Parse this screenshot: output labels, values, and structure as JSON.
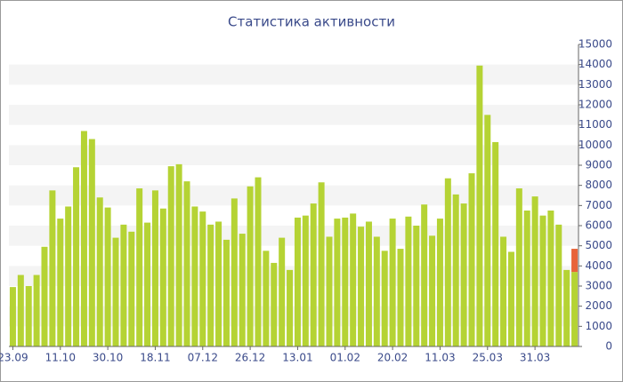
{
  "chart_data": {
    "type": "bar",
    "title": "Статистика активности",
    "categories": [
      "23.09",
      null,
      null,
      null,
      null,
      null,
      "11.10",
      null,
      null,
      null,
      null,
      null,
      "30.10",
      null,
      null,
      null,
      null,
      null,
      "18.11",
      null,
      null,
      null,
      null,
      null,
      "07.12",
      null,
      null,
      null,
      null,
      null,
      "26.12",
      null,
      null,
      null,
      null,
      null,
      "13.01",
      null,
      null,
      null,
      null,
      null,
      "01.02",
      null,
      null,
      null,
      null,
      null,
      "20.02",
      null,
      null,
      null,
      null,
      null,
      "11.03",
      null,
      null,
      null,
      null,
      null,
      "25.03",
      null,
      null,
      null,
      null,
      null,
      "31.03",
      null,
      null,
      null,
      null,
      null
    ],
    "series": [
      {
        "color": "#b5d334",
        "values": [
          2950,
          3550,
          3000,
          3550,
          4950,
          7750,
          6350,
          6950,
          8900,
          10700,
          10300,
          7400,
          6900,
          5400,
          6050,
          5700,
          7850,
          6150,
          7750,
          6850,
          8950,
          9050,
          8200,
          6950,
          6700,
          6050,
          6200,
          5300,
          7350,
          5600,
          7950,
          8400,
          4750,
          4150,
          5400,
          3800,
          6400,
          6500,
          7100,
          8150,
          5450,
          6350,
          6400,
          6600,
          5950,
          6200,
          5450,
          4750,
          6350,
          4850,
          6450,
          6000,
          7050,
          5500,
          6350,
          8350,
          7550,
          7100,
          8600,
          13950,
          11500,
          10150,
          5450,
          4700,
          7850,
          6750,
          7450,
          6500,
          6750,
          6050,
          3800,
          3700
        ]
      },
      {
        "color": "#e8643a",
        "values": [
          null,
          null,
          null,
          null,
          null,
          null,
          null,
          null,
          null,
          null,
          null,
          null,
          null,
          null,
          null,
          null,
          null,
          null,
          null,
          null,
          null,
          null,
          null,
          null,
          null,
          null,
          null,
          null,
          null,
          null,
          null,
          null,
          null,
          null,
          null,
          null,
          null,
          null,
          null,
          null,
          null,
          null,
          null,
          null,
          null,
          null,
          null,
          null,
          null,
          null,
          null,
          null,
          null,
          null,
          null,
          null,
          null,
          null,
          null,
          null,
          null,
          null,
          null,
          null,
          null,
          null,
          null,
          null,
          null,
          null,
          null,
          1150
        ]
      }
    ],
    "stacked": true,
    "ylim": [
      0,
      15000
    ],
    "yticks": [
      0,
      1000,
      2000,
      3000,
      4000,
      5000,
      6000,
      7000,
      8000,
      9000,
      10000,
      11000,
      12000,
      13000,
      14000,
      15000
    ],
    "grid_bands": true
  }
}
